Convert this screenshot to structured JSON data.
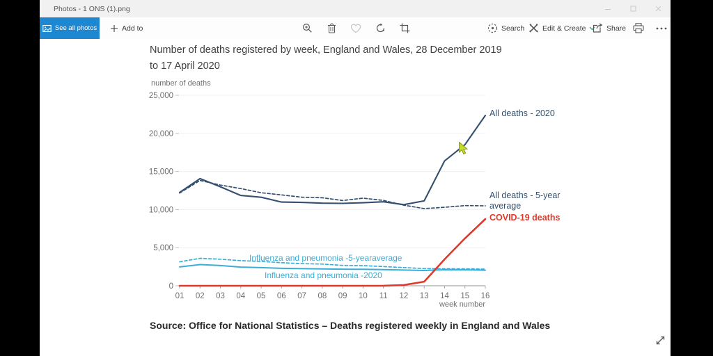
{
  "window": {
    "title": "Photos - 1 ONS (1).png"
  },
  "commandbar": {
    "see_all_photos": "See all photos",
    "add_to": "Add to",
    "search": "Search",
    "edit_create": "Edit & Create",
    "share": "Share"
  },
  "colors": {
    "accent_blue": "#1d87d2",
    "navy": "#34506e",
    "red": "#e0392b",
    "cyan": "#3badd6",
    "chevron_teal": "#45a181"
  },
  "chart": {
    "title_line1": "Number of deaths registered by week, England and Wales, 28 December 2019",
    "title_line2": "to 17 April 2020",
    "y_axis_unit": "number of deaths",
    "x_axis_label": "week number",
    "source": "Source: Office for National Statistics – Deaths registered weekly in England and Wales",
    "labels": {
      "all_deaths_2020": "All deaths - 2020",
      "all_deaths_5yr_line1": "All deaths - 5-year",
      "all_deaths_5yr_line2": "average",
      "covid": "COVID-19 deaths",
      "flu_5yr": "Influenza and pneumonia -5-yearaverage",
      "flu_2020": "Influenza and pneumonia -2020"
    }
  },
  "chart_data": {
    "type": "line",
    "title": "Number of deaths registered by week, England and Wales, 28 December 2019 to 17 April 2020",
    "xlabel": "week number",
    "ylabel": "number of deaths",
    "x": [
      "01",
      "02",
      "03",
      "04",
      "05",
      "06",
      "07",
      "08",
      "09",
      "10",
      "11",
      "12",
      "13",
      "14",
      "15",
      "16"
    ],
    "ylim": [
      0,
      25000
    ],
    "yticks": [
      0,
      5000,
      10000,
      15000,
      20000,
      25000
    ],
    "ytick_labels": [
      "0",
      "5,000",
      "10,000",
      "15,000",
      "20,000",
      "25,000"
    ],
    "grid": "faint horizontal gridlines",
    "legend_position": "inline labels at line ends",
    "series": [
      {
        "id": "influenza-pneumonia-5-year-average",
        "name": "Influenza and pneumonia -5-yearaverage",
        "color": "#3badd6",
        "style": "dashed",
        "dash": "4,3",
        "width": 1.7,
        "values": [
          3136,
          3606,
          3482,
          3297,
          3192,
          3029,
          2902,
          2847,
          2672,
          2648,
          2519,
          2386,
          2256,
          2236,
          2224,
          2187
        ]
      },
      {
        "id": "influenza-pneumonia-2020",
        "name": "Influenza and pneumonia -2020",
        "color": "#3badd6",
        "style": "solid",
        "width": 2,
        "values": [
          2477,
          2785,
          2655,
          2454,
          2382,
          2290,
          2240,
          2221,
          2183,
          2162,
          2128,
          2066,
          2011,
          2106,
          2095,
          2048
        ]
      },
      {
        "id": "covid-19-deaths",
        "name": "COVID-19 deaths",
        "color": "#e0392b",
        "style": "solid",
        "width": 2.6,
        "values": [
          0,
          0,
          0,
          0,
          0,
          0,
          0,
          0,
          0,
          0,
          5,
          103,
          539,
          3475,
          6213,
          8758
        ]
      },
      {
        "id": "all-deaths-5-year-average",
        "name": "All deaths - 5-year average",
        "color": "#34506e",
        "style": "dashed",
        "dash": "4,3",
        "width": 1.7,
        "values": [
          12175,
          13822,
          13216,
          12760,
          12206,
          11925,
          11627,
          11548,
          11183,
          11498,
          11205,
          10573,
          10130,
          10305,
          10520,
          10497
        ]
      },
      {
        "id": "all-deaths-2020",
        "name": "All deaths - 2020",
        "color": "#34506e",
        "style": "solid",
        "width": 2.1,
        "values": [
          12254,
          14058,
          12990,
          11856,
          11612,
          10986,
          10944,
          10841,
          10816,
          10895,
          11019,
          10645,
          11141,
          16387,
          18516,
          22351
        ]
      }
    ]
  }
}
